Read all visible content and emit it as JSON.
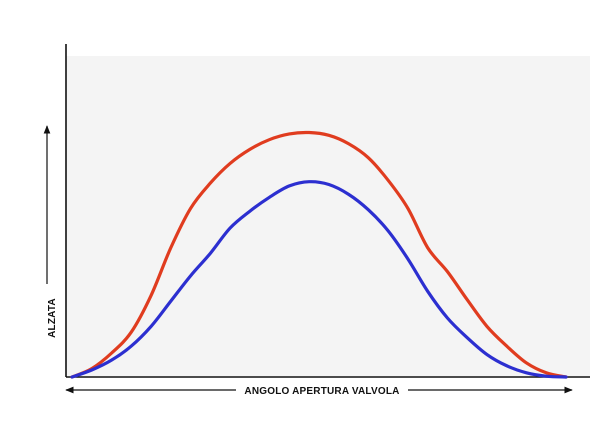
{
  "chart_data": {
    "type": "line",
    "title": "",
    "xlabel": "ANGOLO APERTURA VALVOLA",
    "ylabel": "ALZATA",
    "xlim": [
      0,
      100
    ],
    "ylim": [
      0,
      100
    ],
    "grid": false,
    "legend": "none",
    "series": [
      {
        "color": "#e03c1f",
        "x": [
          0,
          4,
          8,
          12,
          16,
          20,
          24,
          28,
          32,
          36,
          40,
          44,
          48,
          52,
          56,
          60,
          64,
          68,
          72,
          76,
          80,
          84,
          88,
          92,
          96,
          100
        ],
        "values": [
          0,
          3,
          8.5,
          16,
          29,
          46,
          60,
          69,
          76,
          81,
          84.5,
          86.5,
          87,
          86,
          83,
          78,
          70,
          60,
          46,
          37.5,
          27.5,
          18,
          11,
          5,
          1.5,
          0
        ]
      },
      {
        "color": "#2c2fd0",
        "x": [
          0,
          4,
          8,
          12,
          16,
          20,
          24,
          28,
          32,
          36,
          40,
          44,
          48,
          52,
          56,
          60,
          64,
          68,
          72,
          76,
          80,
          84,
          88,
          92,
          96,
          100
        ],
        "values": [
          0,
          2.5,
          6,
          11,
          18,
          27,
          36,
          44,
          53,
          59,
          64,
          68,
          69.5,
          68.5,
          65,
          59.5,
          52,
          42,
          30.5,
          21,
          14,
          8,
          4,
          1.5,
          0.3,
          0
        ]
      }
    ]
  }
}
